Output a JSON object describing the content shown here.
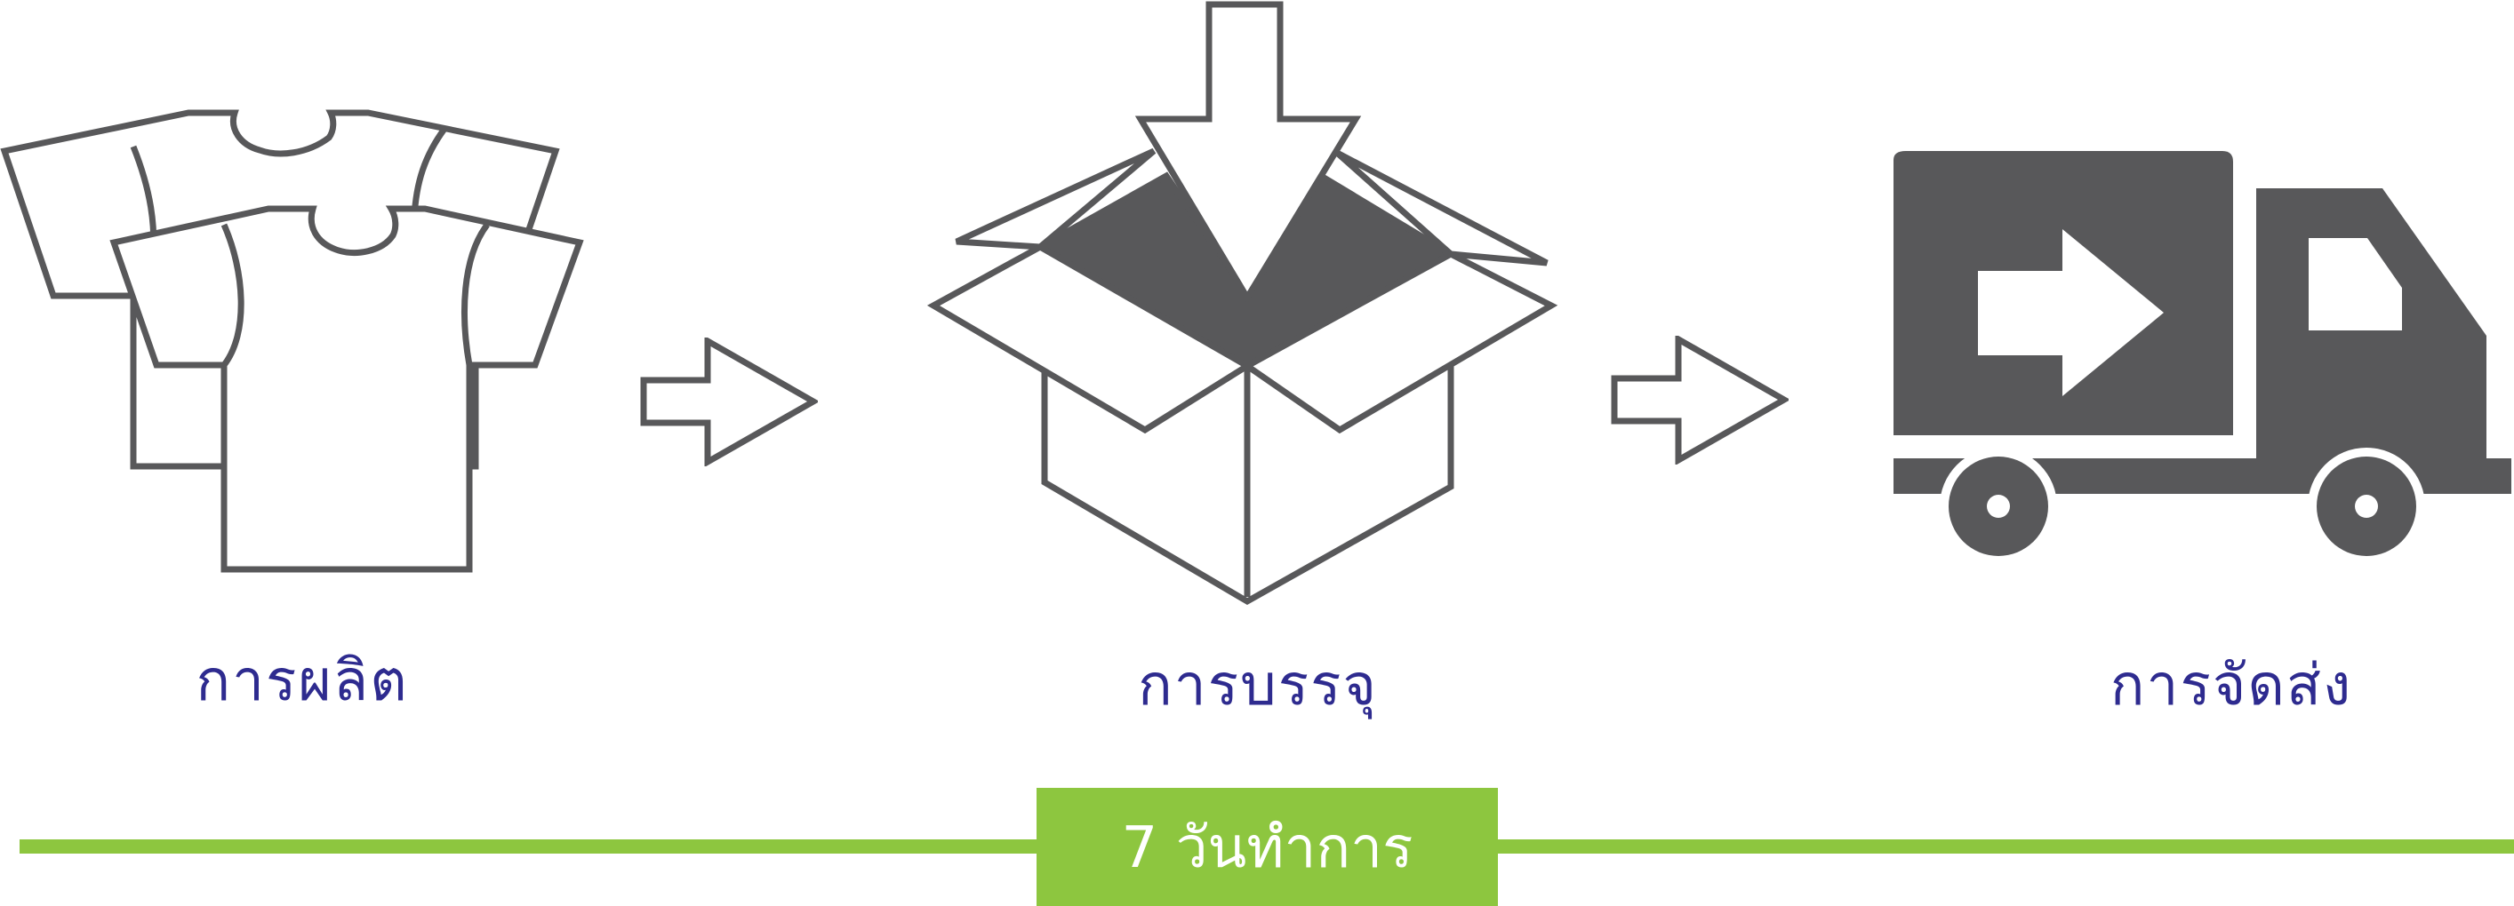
{
  "steps": [
    {
      "label": "การผลิต",
      "icon": "t-shirts-icon"
    },
    {
      "label": "การบรรจุ",
      "icon": "open-box-icon"
    },
    {
      "label": "การจัดส่ง",
      "icon": "delivery-truck-icon"
    }
  ],
  "duration": {
    "label": "7 วันทำการ"
  },
  "colors": {
    "icon": "#58585a",
    "label": "#2e2b8f",
    "accent": "#8dc63f",
    "background": "#ffffff"
  }
}
